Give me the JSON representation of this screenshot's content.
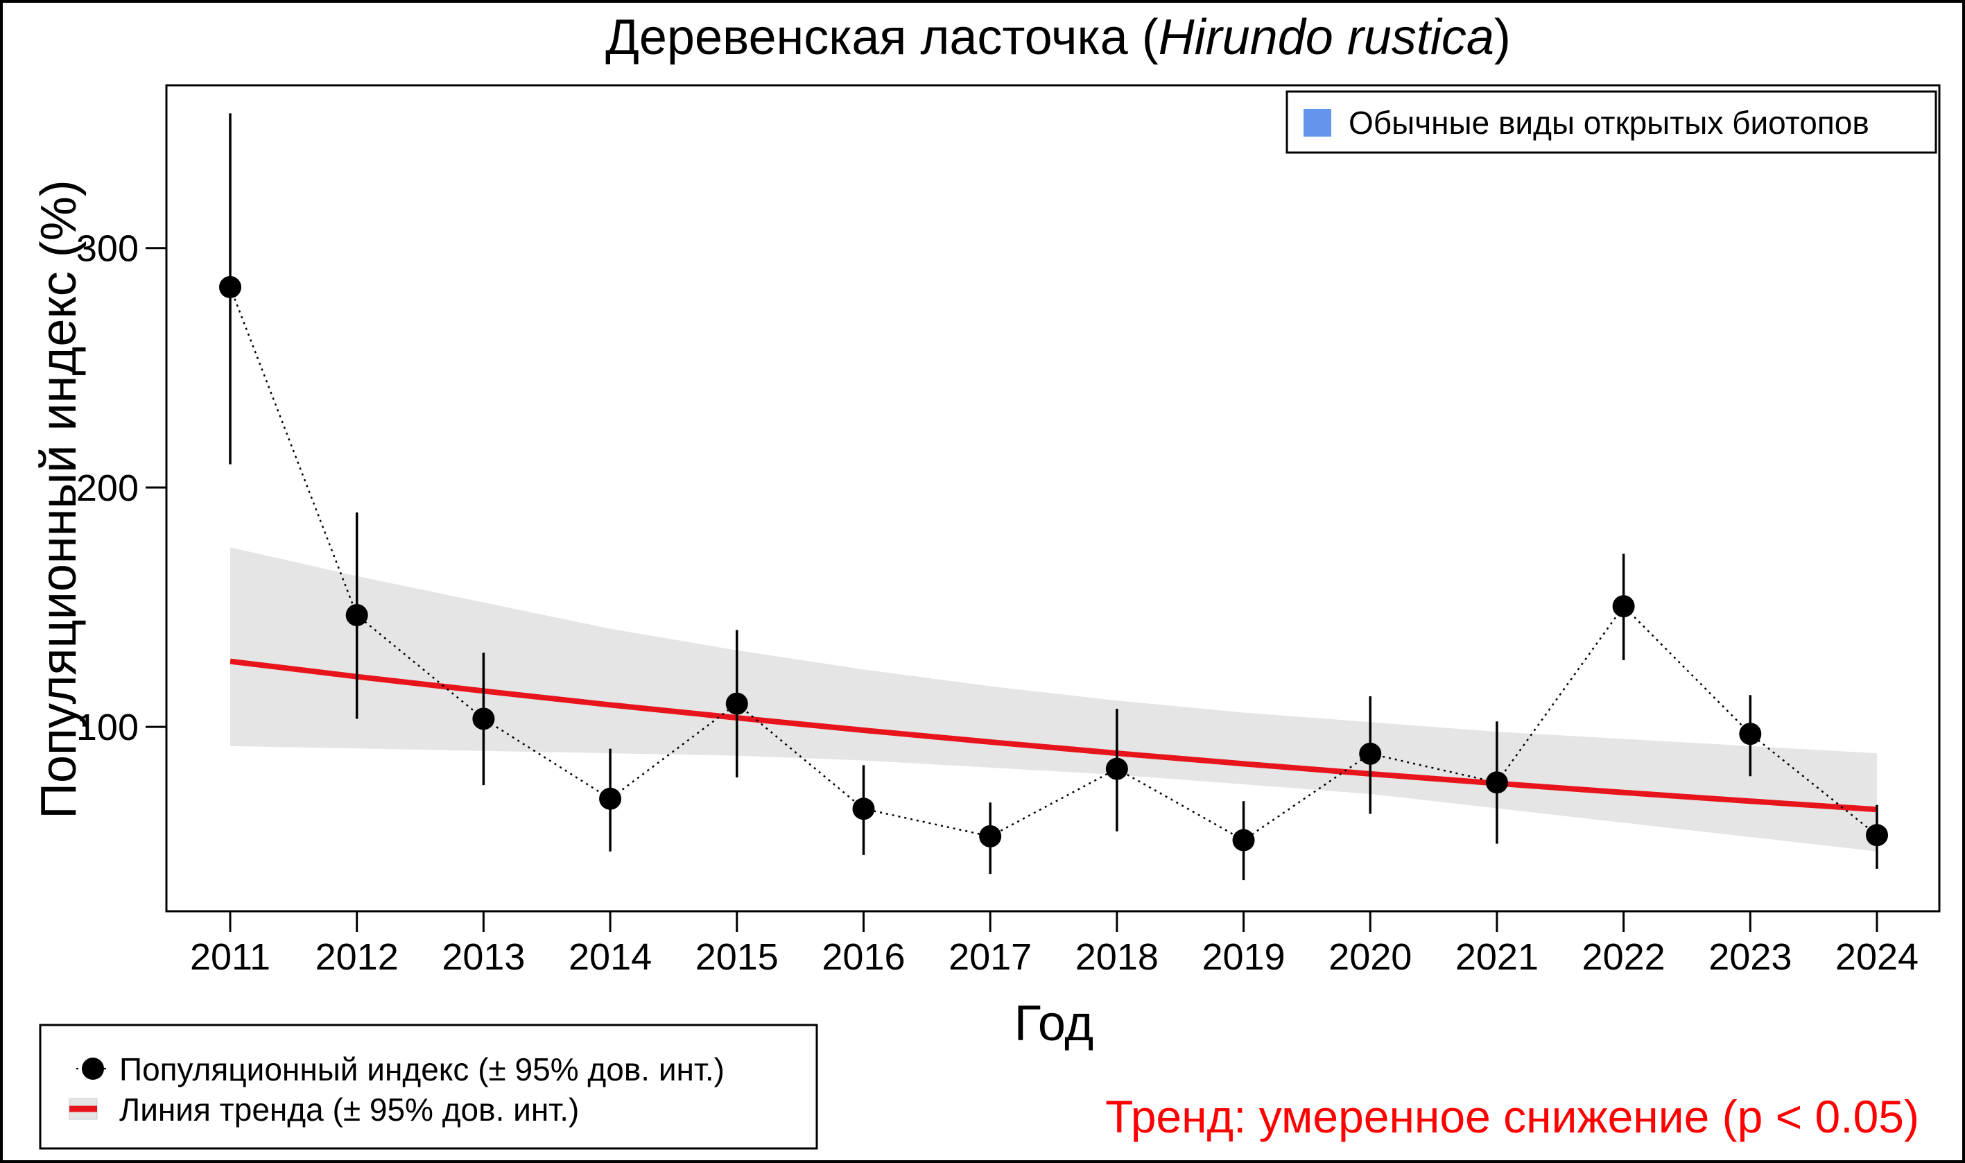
{
  "chart_data": {
    "type": "line",
    "title_main": "Деревенская ласточка (",
    "title_italic": "Hirundo rustica",
    "title_end": ")",
    "xlabel": "Год",
    "ylabel": "Популяционный индекс (%)",
    "x": [
      2011,
      2012,
      2013,
      2014,
      2015,
      2016,
      2017,
      2018,
      2019,
      2020,
      2021,
      2022,
      2023,
      2024
    ],
    "ylim": [
      23,
      368
    ],
    "yticks": [
      100,
      200,
      300
    ],
    "grid": false,
    "series": [
      {
        "name": "Популяционный индекс (± 95% дов. инт.)",
        "values": [
          283.7,
          146.7,
          103.4,
          70,
          109.7,
          65.8,
          54.3,
          82.5,
          52.7,
          88.8,
          76.8,
          150.4,
          97.1,
          54.8
        ],
        "ci_upper": [
          356.3,
          189.6,
          131,
          90.9,
          140.5,
          84,
          68.4,
          107.6,
          69,
          112.8,
          102.3,
          172.3,
          113.3,
          67.4
        ],
        "ci_lower": [
          209.7,
          103.4,
          75.7,
          48,
          78.9,
          46.5,
          38.6,
          56.4,
          36,
          63.7,
          51.2,
          127.9,
          79.4,
          40.7
        ],
        "color": "#000000"
      },
      {
        "name": "Линия тренда (± 95% дов. инт.)",
        "values": [
          127.4,
          121.0,
          115.0,
          109.2,
          103.8,
          98.6,
          93.7,
          89.0,
          84.6,
          80.4,
          76.4,
          72.6,
          69.0,
          65.5
        ],
        "band_upper": [
          175,
          163,
          152,
          141,
          132,
          124,
          117,
          111,
          106,
          102,
          98,
          95,
          92,
          89
        ],
        "band_lower": [
          92,
          91,
          90,
          89,
          88,
          86,
          83,
          80,
          76,
          72,
          66,
          60,
          54,
          48
        ],
        "color": "#e8141c",
        "band_color": "#e5e5e5"
      }
    ],
    "group_legend": {
      "label": "Обычные виды открытых биотопов",
      "color": "#6495ed",
      "placement": "top-right"
    },
    "legend_placement": "bottom-left",
    "annotation": "Тренд: умеренное снижение (p < 0.05)",
    "annotation_color": "#ff0000"
  }
}
